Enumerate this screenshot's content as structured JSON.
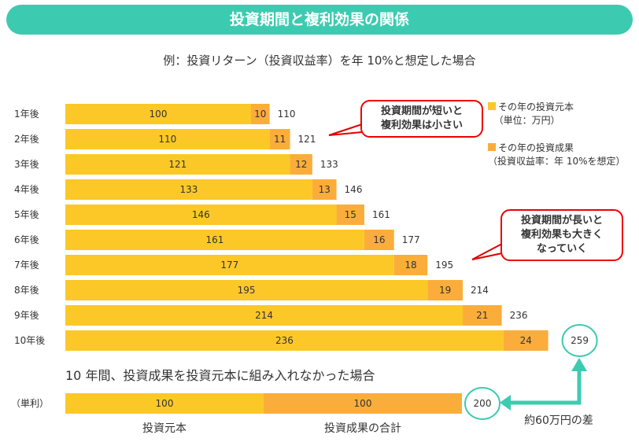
{
  "title": "投資期間と複利効果の関係",
  "subtitle": "例：投資リターン（投資収益率）を年 10%と想定した場合",
  "colors": {
    "principal": "#fcc827",
    "gain": "#fbad3b",
    "accent": "#3ccbb0",
    "bubble_border": "#e00000"
  },
  "chart_data": {
    "type": "bar",
    "stacked": true,
    "orientation": "horizontal",
    "categories": [
      "1年後",
      "2年後",
      "3年後",
      "4年後",
      "5年後",
      "6年後",
      "7年後",
      "8年後",
      "9年後",
      "10年後"
    ],
    "series": [
      {
        "name": "その年の投資元本",
        "note": "（単位：万円）",
        "values": [
          100,
          110,
          121,
          133,
          146,
          161,
          177,
          195,
          214,
          236
        ]
      },
      {
        "name": "その年の投資成果",
        "note": "（投資収益率：年 10%を想定）",
        "values": [
          10,
          11,
          12,
          13,
          15,
          16,
          18,
          19,
          21,
          24
        ]
      }
    ],
    "totals": [
      110,
      121,
      133,
      146,
      161,
      177,
      195,
      214,
      236,
      259
    ],
    "simple": {
      "heading": "10 年間、投資成果を投資元本に組み入れなかった場合",
      "label": "（単利）",
      "values": [
        100,
        100
      ],
      "total": 200,
      "captions": [
        "投資元本",
        "投資成果の合計"
      ]
    },
    "difference_label": "約60万円の差"
  },
  "callouts": {
    "short": "投資期間が短いと\n複利効果は小さい",
    "long": "投資期間が長いと\n複利効果も大きく\nなっていく"
  }
}
